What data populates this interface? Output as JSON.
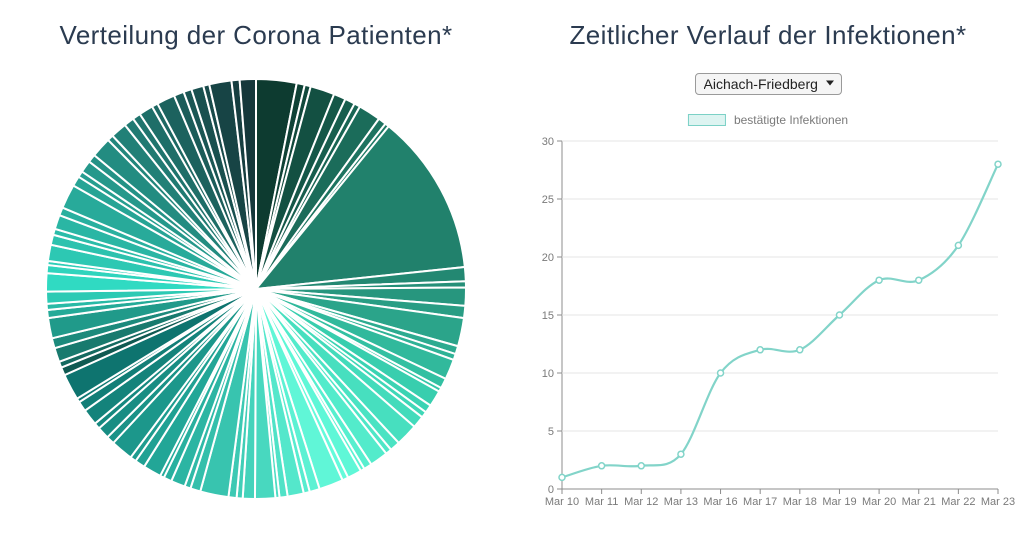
{
  "pie_chart": {
    "title": "Verteilung der Corona Patienten*",
    "type": "pie",
    "background_color": "#ffffff",
    "slice_border_color": "#ffffff",
    "slice_border_width": 2,
    "title_fontsize": 26,
    "title_color": "#2b3b50",
    "values": [
      20,
      4,
      3,
      12,
      6,
      5,
      3,
      11,
      4,
      2,
      80,
      7,
      3,
      9,
      6,
      14,
      4,
      3,
      10,
      5,
      2,
      8,
      4,
      3,
      6,
      11,
      5,
      3,
      9,
      4,
      2,
      7,
      3,
      12,
      5,
      3,
      8,
      4,
      2,
      10,
      6,
      3,
      4,
      14,
      5,
      3,
      7,
      4,
      2,
      9,
      5,
      3,
      11,
      4,
      6,
      3,
      8,
      5,
      2,
      13,
      4,
      3,
      7,
      5,
      10,
      4,
      3,
      6,
      9,
      4,
      2,
      8,
      5,
      3,
      7,
      4,
      12,
      5,
      3,
      6,
      4,
      10,
      3,
      8,
      5,
      4,
      7,
      3,
      9,
      5,
      4,
      6,
      3,
      11,
      4,
      8
    ],
    "colors": [
      "#0d3b30",
      "#0f4236",
      "#11493c",
      "#135042",
      "#155748",
      "#175e4e",
      "#196554",
      "#1b6c5a",
      "#1d7360",
      "#1f7a66",
      "#21816c",
      "#238872",
      "#258f78",
      "#27967e",
      "#299d84",
      "#2ba48a",
      "#2dab90",
      "#2fb296",
      "#31b99c",
      "#33c0a2",
      "#35c7a8",
      "#38ceae",
      "#3bd3b3",
      "#3fd7b7",
      "#43dbbb",
      "#47dfbf",
      "#4be3c3",
      "#4fe7c7",
      "#53ebcb",
      "#57efcf",
      "#5bf3d3",
      "#5ff7d7",
      "#63fbdb",
      "#60f6d7",
      "#5cf1d3",
      "#58eccf",
      "#54e7cb",
      "#50e2c7",
      "#4cddc3",
      "#48d8bf",
      "#44d3bb",
      "#40ceb7",
      "#3cc9b3",
      "#38c4af",
      "#34bfab",
      "#30baa7",
      "#2cb5a3",
      "#28b09f",
      "#24ab9b",
      "#22a697",
      "#20a193",
      "#1e9c8f",
      "#1c978b",
      "#1a9287",
      "#188d83",
      "#16887f",
      "#14837b",
      "#127e77",
      "#107973",
      "#0e746f",
      "#105a52",
      "#146a60",
      "#187a6e",
      "#1c8a7c",
      "#209a8a",
      "#24aa98",
      "#28baa6",
      "#2ccab4",
      "#30dac2",
      "#2fd4bd",
      "#2eceb8",
      "#2dc8b3",
      "#2cc2ae",
      "#2bbca9",
      "#2ab6a4",
      "#29b09f",
      "#28aa9a",
      "#27a495",
      "#269e90",
      "#25988b",
      "#249286",
      "#238c81",
      "#22867c",
      "#218077",
      "#207a72",
      "#1f746d",
      "#1e6e68",
      "#1d6863",
      "#1c625e",
      "#1b5c59",
      "#1a5654",
      "#19504f",
      "#184a4a",
      "#174445",
      "#163e40",
      "#15383b"
    ]
  },
  "line_chart": {
    "title": "Zeitlicher Verlauf der Infektionen*",
    "type": "line",
    "dropdown_selected": "Aichach-Friedberg",
    "dropdown_options": [
      "Aichach-Friedberg"
    ],
    "legend_label": "bestätigte Infektionen",
    "series_color": "#82d4c9",
    "series_fill": "rgba(130,212,201,0.0)",
    "point_radius": 3,
    "line_width": 2.2,
    "background_color": "#ffffff",
    "grid_color": "#e4e4e4",
    "axis_color": "#8c8c8c",
    "axis_label_color": "#7a7a7a",
    "axis_fontsize": 11,
    "ylim": [
      0,
      30
    ],
    "ytick_step": 5,
    "x_labels": [
      "Mar 10",
      "Mar 11",
      "Mar 12",
      "Mar 13",
      "Mar 16",
      "Mar 17",
      "Mar 18",
      "Mar 19",
      "Mar 20",
      "Mar 21",
      "Mar 22",
      "Mar 23"
    ],
    "y_values": [
      1,
      2,
      2,
      3,
      10,
      12,
      12,
      15,
      18,
      18,
      21,
      28
    ],
    "title_fontsize": 26,
    "title_color": "#2b3b50"
  }
}
